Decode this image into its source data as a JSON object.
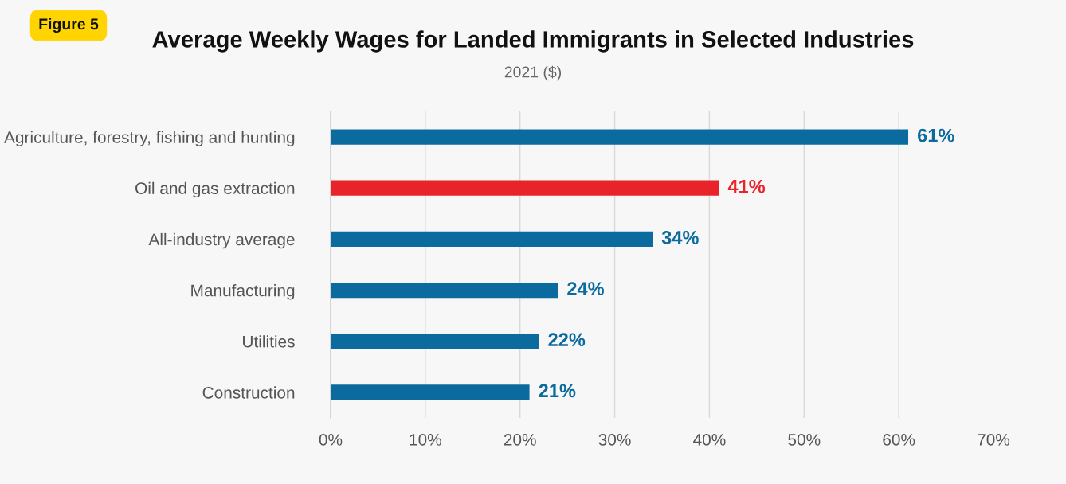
{
  "chart_data": {
    "type": "bar",
    "orientation": "horizontal",
    "title": "Average Weekly Wages for Landed Immigrants in Selected Industries",
    "subtitle": "2021 ($)",
    "annotations": [
      "Figure 5"
    ],
    "categories": [
      "Agriculture, forestry, fishing and hunting",
      "Oil and gas extraction",
      "All-industry average",
      "Manufacturing",
      "Utilities",
      "Construction"
    ],
    "values": [
      61,
      41,
      34,
      24,
      22,
      21
    ],
    "colors": [
      "#0b6a9e",
      "#e8232a",
      "#0b6a9e",
      "#0b6a9e",
      "#0b6a9e",
      "#0b6a9e"
    ],
    "value_labels": [
      "61%",
      "41%",
      "34%",
      "24%",
      "22%",
      "21%"
    ],
    "xlim": [
      0,
      70
    ],
    "xticks": [
      {
        "value": 0,
        "label": "0%"
      },
      {
        "value": 10,
        "label": "10%"
      },
      {
        "value": 20,
        "label": "20%"
      },
      {
        "value": 30,
        "label": "30%"
      },
      {
        "value": 40,
        "label": "40%"
      },
      {
        "value": 50,
        "label": "50%"
      },
      {
        "value": 60,
        "label": "60%"
      },
      {
        "value": 70,
        "label": "70%"
      }
    ],
    "grid": "x",
    "legend": false
  }
}
